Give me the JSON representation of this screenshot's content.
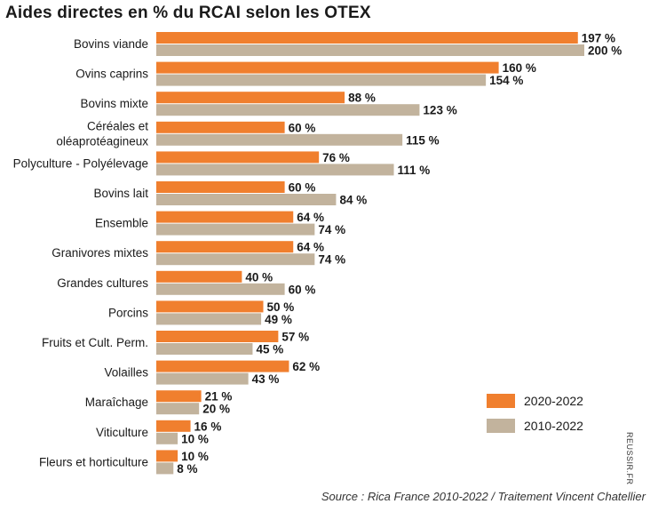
{
  "chart_data": {
    "type": "bar",
    "orientation": "horizontal",
    "title": "Aides directes en % du RCAI selon les OTEX",
    "categories": [
      [
        "Bovins viande"
      ],
      [
        "Ovins caprins"
      ],
      [
        "Bovins mixte"
      ],
      [
        "Céréales et",
        "oléaprotéagineux"
      ],
      [
        "Polyculture - Polyélevage"
      ],
      [
        "Bovins  lait"
      ],
      [
        "Ensemble"
      ],
      [
        "Granivores mixtes"
      ],
      [
        "Grandes cultures"
      ],
      [
        "Porcins"
      ],
      [
        "Fruits et Cult. Perm."
      ],
      [
        "Volailles"
      ],
      [
        "Maraîchage"
      ],
      [
        "Viticulture"
      ],
      [
        "Fleurs et horticulture"
      ]
    ],
    "series": [
      {
        "name": "2020-2022",
        "color": "#f07f2e",
        "values": [
          197,
          160,
          88,
          60,
          76,
          60,
          64,
          64,
          40,
          50,
          57,
          62,
          21,
          16,
          10
        ]
      },
      {
        "name": "2010-2022",
        "color": "#c2b39d",
        "values": [
          200,
          154,
          123,
          115,
          111,
          84,
          74,
          74,
          60,
          49,
          45,
          43,
          20,
          10,
          8
        ]
      }
    ],
    "value_suffix": " %",
    "xlim": [
      0,
      200
    ],
    "grid": false,
    "legend": "bottom-right"
  },
  "source": "Source : Rica France 2010-2022 / Traitement Vincent Chatellier",
  "watermark": "REUSSIR.FR"
}
